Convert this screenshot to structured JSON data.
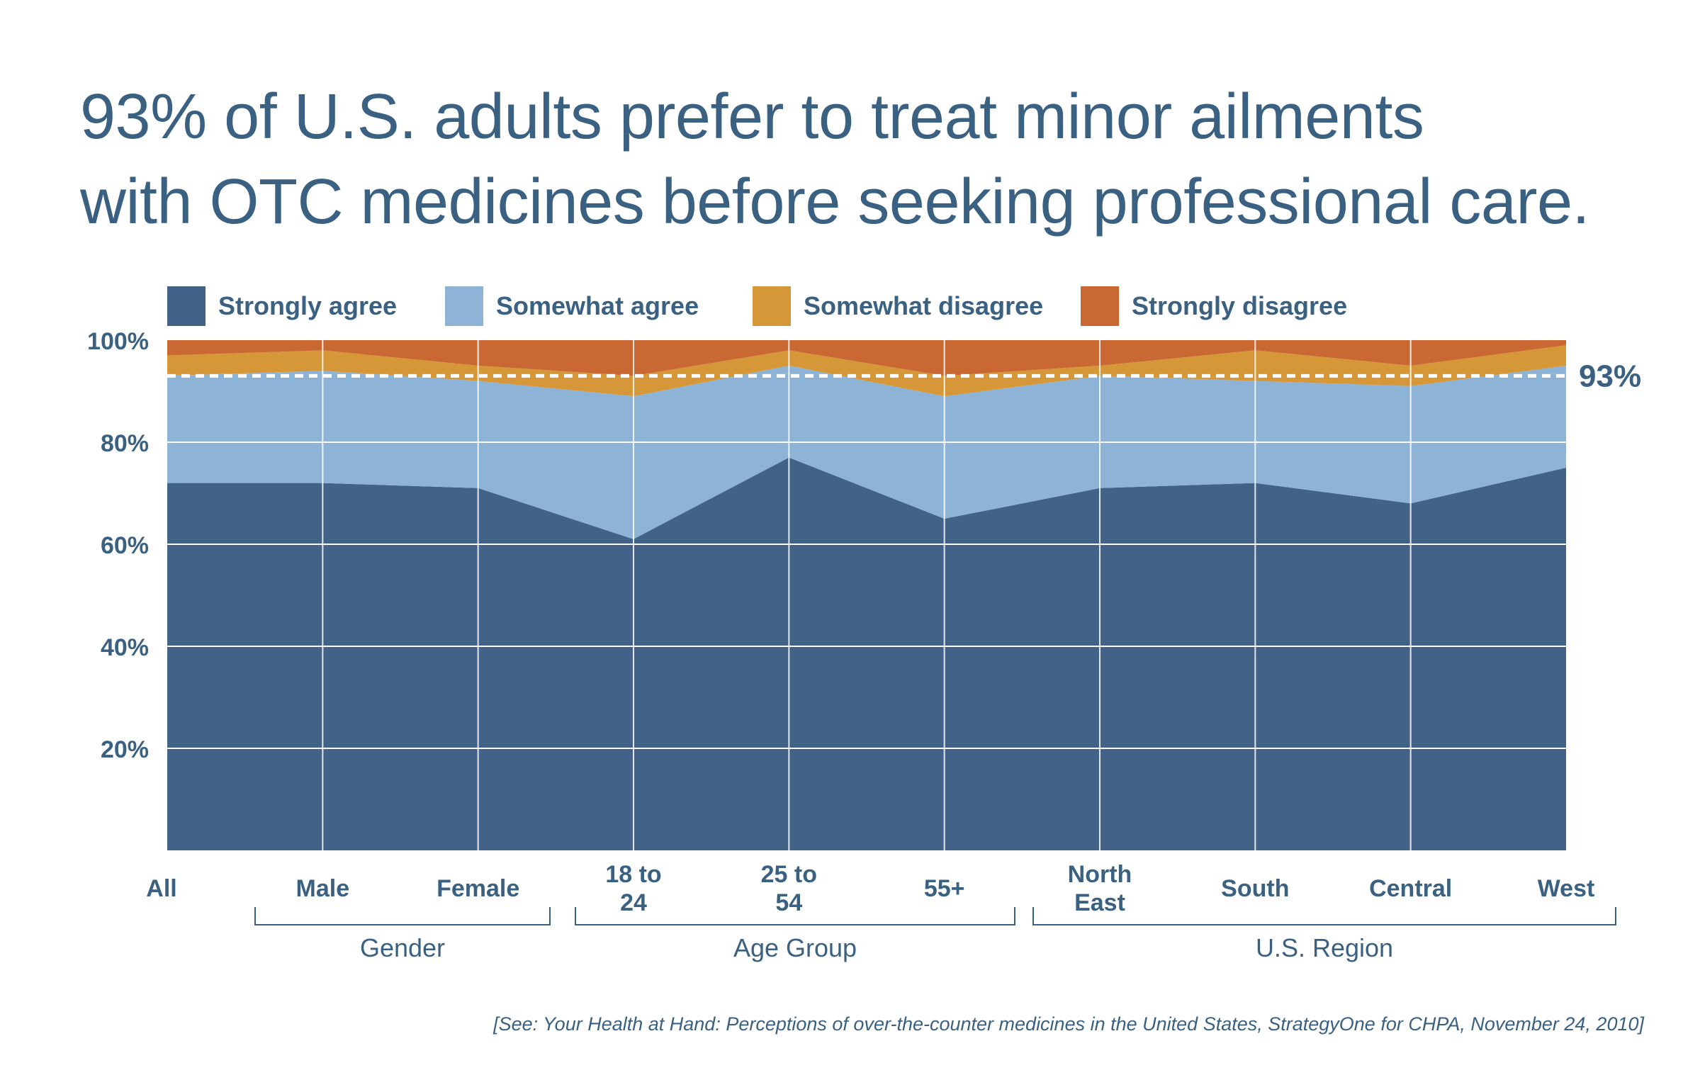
{
  "title_lines": [
    "93% of U.S. adults prefer to treat minor ailments",
    "with OTC medicines before seeking professional care."
  ],
  "source": "[See: Your Health at Hand: Perceptions of over-the-counter medicines in the United States, StrategyOne for CHPA, November 24, 2010]",
  "colors": {
    "strongly_agree": "#426387",
    "somewhat_agree": "#8db4d6",
    "somewhat_disagree": "#d69738",
    "strongly_disagree": "#c96833",
    "text": "#3b6182",
    "grid": "#ffffff"
  },
  "chart_data": {
    "type": "area",
    "stacked": true,
    "title": "93% of U.S. adults prefer to treat minor ailments with OTC medicines before seeking professional care.",
    "categories": [
      "All",
      "Male",
      "Female",
      "18 to 24",
      "25 to 54",
      "55+",
      "North East",
      "South",
      "Central",
      "West"
    ],
    "category_lines": [
      [
        "All"
      ],
      [
        "Male"
      ],
      [
        "Female"
      ],
      [
        "18 to",
        "24"
      ],
      [
        "25 to",
        "54"
      ],
      [
        "55+"
      ],
      [
        "North",
        "East"
      ],
      [
        "South"
      ],
      [
        "Central"
      ],
      [
        "West"
      ]
    ],
    "groups": [
      {
        "label": "Gender",
        "from": 1,
        "to": 2
      },
      {
        "label": "Age Group",
        "from": 3,
        "to": 5
      },
      {
        "label": "U.S. Region",
        "from": 6,
        "to": 9
      }
    ],
    "series": [
      {
        "name": "Strongly agree",
        "color": "#426387",
        "values": [
          72,
          72,
          71,
          61,
          77,
          65,
          71,
          72,
          68,
          75
        ]
      },
      {
        "name": "Somewhat agree",
        "color": "#8db4d6",
        "values": [
          21,
          22,
          21,
          28,
          18,
          24,
          22,
          20,
          23,
          20
        ]
      },
      {
        "name": "Somewhat disagree",
        "color": "#d69738",
        "values": [
          4,
          4,
          3,
          4,
          3,
          4,
          2,
          6,
          4,
          4
        ]
      },
      {
        "name": "Strongly disagree",
        "color": "#c96833",
        "values": [
          3,
          2,
          5,
          7,
          2,
          7,
          5,
          2,
          5,
          1
        ]
      }
    ],
    "y_ticks": [
      20,
      40,
      60,
      80,
      100
    ],
    "y_tick_labels": [
      "20%",
      "40%",
      "60%",
      "80%",
      "100%"
    ],
    "ylim": [
      0,
      100
    ],
    "grid": true,
    "reference_line": {
      "value": 93,
      "label": "93%",
      "style": "dashed"
    },
    "legend_position": "top"
  }
}
